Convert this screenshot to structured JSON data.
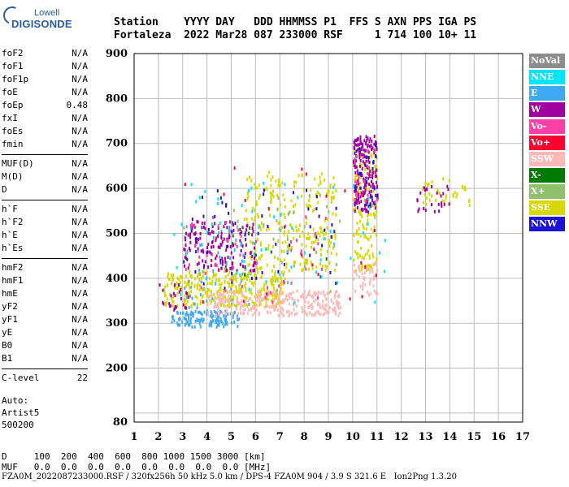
{
  "logo": {
    "top": "Lowell",
    "main": "DIGISONDE"
  },
  "header": {
    "line1": "Station    YYYY DAY   DDD HHMMSS P1  FFS S AXN PPS IGA PS",
    "line2": "Fortaleza  2022 Mar28 087 233000 RSF     1 714 100 10+ 11"
  },
  "params": [
    {
      "group": [
        {
          "name": "foF2",
          "value": "N/A"
        },
        {
          "name": "foF1",
          "value": "N/A"
        },
        {
          "name": "foF1p",
          "value": "N/A"
        },
        {
          "name": "foE",
          "value": "N/A"
        },
        {
          "name": "foEp",
          "value": "0.48"
        },
        {
          "name": "fxI",
          "value": "N/A"
        },
        {
          "name": "foEs",
          "value": "N/A"
        },
        {
          "name": "fmin",
          "value": "N/A"
        }
      ]
    },
    {
      "group": [
        {
          "name": "MUF(D)",
          "value": "N/A"
        },
        {
          "name": "M(D)",
          "value": "N/A"
        },
        {
          "name": "D",
          "value": "N/A"
        }
      ]
    },
    {
      "group": [
        {
          "name": "h`F",
          "value": "N/A"
        },
        {
          "name": "h`F2",
          "value": "N/A"
        },
        {
          "name": "h`E",
          "value": "N/A"
        },
        {
          "name": "h`Es",
          "value": "N/A"
        }
      ]
    },
    {
      "group": [
        {
          "name": "hmF2",
          "value": "N/A"
        },
        {
          "name": "hmF1",
          "value": "N/A"
        },
        {
          "name": "hmE",
          "value": "N/A"
        },
        {
          "name": "yF2",
          "value": "N/A"
        },
        {
          "name": "yF1",
          "value": "N/A"
        },
        {
          "name": "yE",
          "value": "N/A"
        },
        {
          "name": "B0",
          "value": "N/A"
        },
        {
          "name": "B1",
          "value": "N/A"
        }
      ]
    },
    {
      "group": [
        {
          "name": "C-level",
          "value": "22"
        }
      ]
    }
  ],
  "autoscale": {
    "label": "Auto:",
    "artist": "Artist5",
    "version": "500200"
  },
  "legend": [
    {
      "label": "NoVal",
      "color": "#8c8c8c"
    },
    {
      "label": "NNE",
      "color": "#00e5ff"
    },
    {
      "label": "E",
      "color": "#3fa9f5"
    },
    {
      "label": "W",
      "color": "#a0009f"
    },
    {
      "label": "Vo-",
      "color": "#ff3fa7"
    },
    {
      "label": "Vo+",
      "color": "#ff0030"
    },
    {
      "label": "SSW",
      "color": "#ffb8b8"
    },
    {
      "label": "X-",
      "color": "#007a00"
    },
    {
      "label": "X+",
      "color": "#8fc06a"
    },
    {
      "label": "SSE",
      "color": "#d8d800"
    },
    {
      "label": "NNW",
      "color": "#1c12d6"
    }
  ],
  "muf_table": {
    "d_row": "D     100  200  400  600  800 1000 1500 3000 [km]",
    "muf_row": "MUF   0.0  0.0  0.0  0.0  0.0  0.0  0.0  0.0 [MHz]"
  },
  "footer": "FZA0M_2022087233000.RSF / 320fx256h 50 kHz 5.0 km / DPS-4 FZA0M 904 / 3.9 S 321.6 E   Ion2Png 1.3.20",
  "chart_data": {
    "type": "scatter",
    "xlim": [
      1,
      17
    ],
    "ylim": [
      80,
      900
    ],
    "x_ticks": [
      1,
      2,
      3,
      4,
      5,
      6,
      7,
      8,
      9,
      10,
      11,
      12,
      13,
      14,
      15,
      16,
      17
    ],
    "y_ticks": [
      80,
      200,
      300,
      400,
      500,
      600,
      700,
      800,
      900
    ],
    "grid": true,
    "clusters": [
      {
        "series": "E",
        "x": [
          2.5,
          5.3
        ],
        "y": [
          295,
          330
        ],
        "n": 130
      },
      {
        "series": "E",
        "x": [
          3.0,
          6.0
        ],
        "y": [
          330,
          520
        ],
        "n": 70
      },
      {
        "series": "SSE",
        "x": [
          2.2,
          7.2
        ],
        "y": [
          340,
          420
        ],
        "n": 320
      },
      {
        "series": "SSE",
        "x": [
          5.5,
          9.3
        ],
        "y": [
          420,
          640
        ],
        "n": 260
      },
      {
        "series": "SSE",
        "x": [
          10.0,
          11.0
        ],
        "y": [
          420,
          690
        ],
        "n": 160
      },
      {
        "series": "SSE",
        "x": [
          12.8,
          14.8
        ],
        "y": [
          560,
          625
        ],
        "n": 40
      },
      {
        "series": "SSW",
        "x": [
          4.0,
          9.5
        ],
        "y": [
          320,
          375
        ],
        "n": 300
      },
      {
        "series": "SSW",
        "x": [
          10.0,
          11.0
        ],
        "y": [
          365,
          440
        ],
        "n": 50
      },
      {
        "series": "W",
        "x": [
          3.0,
          6.0
        ],
        "y": [
          420,
          530
        ],
        "n": 150
      },
      {
        "series": "W",
        "x": [
          10.0,
          11.0
        ],
        "y": [
          550,
          720
        ],
        "n": 180
      },
      {
        "series": "W",
        "x": [
          12.5,
          14.0
        ],
        "y": [
          550,
          610
        ],
        "n": 25
      },
      {
        "series": "W",
        "x": [
          1.9,
          3.2
        ],
        "y": [
          330,
          390
        ],
        "n": 25
      },
      {
        "series": "NNW",
        "x": [
          3.0,
          9.3
        ],
        "y": [
          380,
          600
        ],
        "n": 60
      },
      {
        "series": "NNW",
        "x": [
          10.0,
          11.0
        ],
        "y": [
          560,
          700
        ],
        "n": 30
      },
      {
        "series": "NNE",
        "x": [
          2.5,
          11.5
        ],
        "y": [
          340,
          620
        ],
        "n": 60
      },
      {
        "series": "Vo-",
        "x": [
          3.0,
          9.0
        ],
        "y": [
          350,
          550
        ],
        "n": 50
      },
      {
        "series": "Vo-",
        "x": [
          10.0,
          11.0
        ],
        "y": [
          560,
          700
        ],
        "n": 25
      },
      {
        "series": "Vo+",
        "x": [
          3.0,
          11.0
        ],
        "y": [
          350,
          650
        ],
        "n": 30
      },
      {
        "series": "X+",
        "x": [
          3.0,
          9.5
        ],
        "y": [
          360,
          600
        ],
        "n": 40
      },
      {
        "series": "X-",
        "x": [
          5.0,
          9.0
        ],
        "y": [
          400,
          550
        ],
        "n": 10
      }
    ]
  }
}
